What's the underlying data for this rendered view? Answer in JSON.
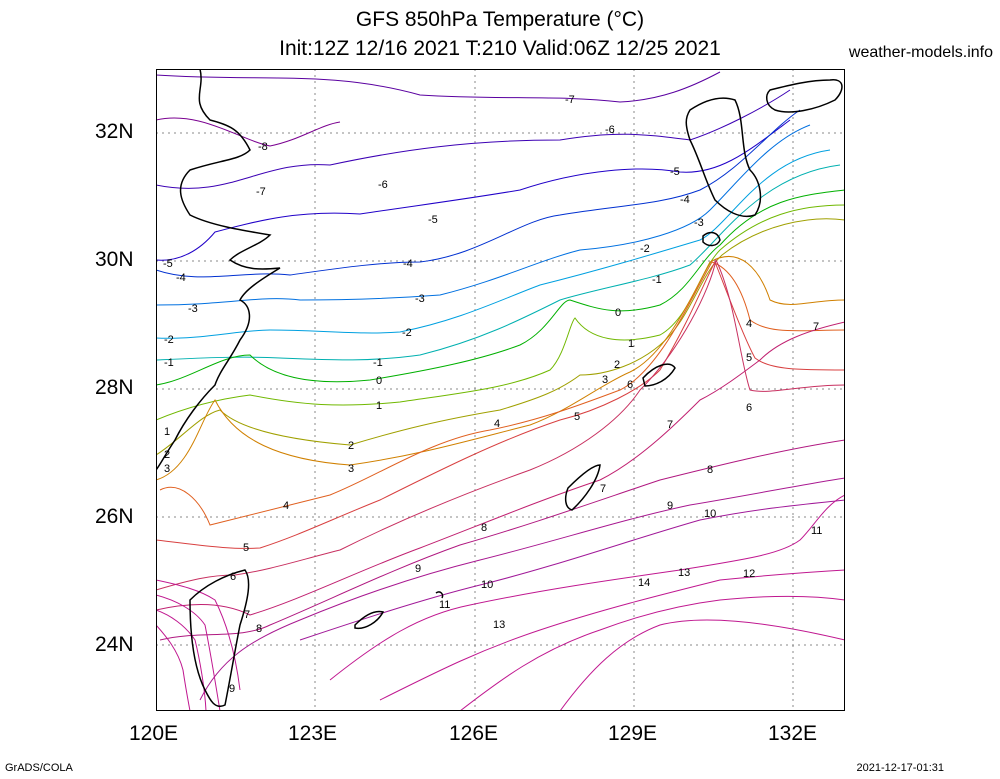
{
  "title_line1": "GFS 850hPa Temperature (°C)",
  "title_line2": "Init:12Z 12/16 2021 T:210 Valid:06Z 12/25 2021",
  "site": "weather-models.info",
  "footer_left": "GrADS/COLA",
  "footer_right": "2021-12-17-01:31",
  "lat_labels": [
    "32N",
    "30N",
    "28N",
    "26N",
    "24N"
  ],
  "lon_labels": [
    "120E",
    "123E",
    "126E",
    "129E",
    "132E"
  ],
  "contour_labels": [
    "-8",
    "-7",
    "-6",
    "-5",
    "-4",
    "-3",
    "-2",
    "-1",
    "0",
    "1",
    "2",
    "3",
    "4",
    "5",
    "6",
    "7",
    "8",
    "9",
    "10",
    "11",
    "12",
    "13",
    "14"
  ],
  "colors": {
    "m8": "#7a0090",
    "m7": "#5a00a0",
    "m6": "#3c00b4",
    "m5": "#2000c8",
    "m4": "#0030d0",
    "m3": "#0070e0",
    "m2": "#00a0e0",
    "m1": "#00b0b0",
    "z0": "#00b000",
    "p1": "#70b800",
    "p2": "#a0a000",
    "p3": "#d08000",
    "p4": "#e06020",
    "p5": "#d84040",
    "p6": "#c83060",
    "p7": "#c02070",
    "p8": "#b01880",
    "p9": "#a81890",
    "p10": "#a01898",
    "warm": "#c01890",
    "land": "#000000"
  }
}
